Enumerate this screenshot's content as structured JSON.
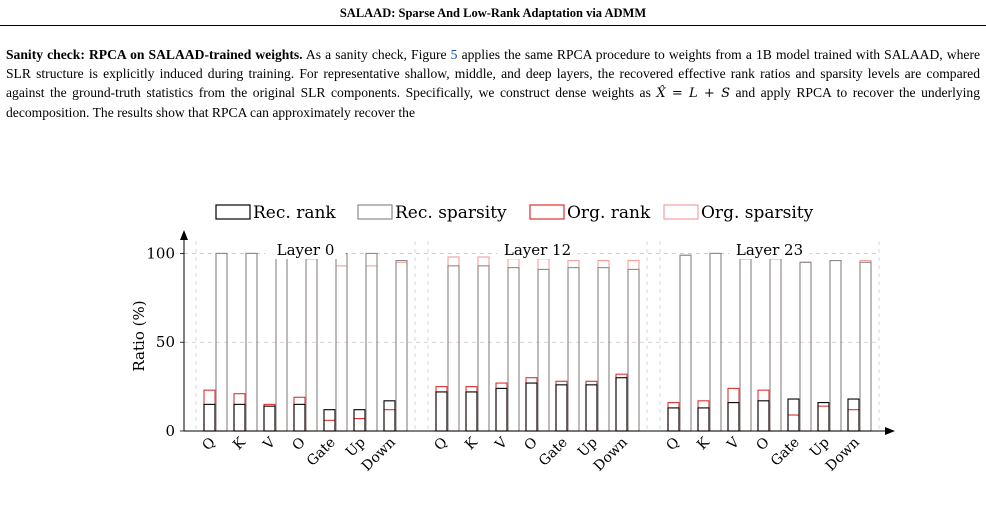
{
  "header": {
    "title": "SALAAD: Sparse And Low-Rank Adaptation via ADMM"
  },
  "paragraph": {
    "heading": "Sanity check: RPCA on SALAAD-trained weights.",
    "text_1": " As a sanity check, Figure ",
    "figure_ref": "5",
    "text_2": " applies the same RPCA procedure to weights from a 1B model trained with SALAAD, where SLR structure is explicitly induced during training. For representative shallow, middle, and deep layers, the recovered effective rank ratios and sparsity levels are compared against the ground-truth statistics from the original SLR components. Specifically, we construct dense weights as ",
    "equation": "X̂ = L + S",
    "text_3": " and apply RPCA to recover the underlying decomposition. The results show that RPCA can approximately recover the"
  },
  "chart_data": {
    "type": "bar",
    "ylabel": "Ratio (%)",
    "yticks": [
      0,
      50,
      100
    ],
    "ylim": [
      0,
      107
    ],
    "legend_position": "top",
    "legend": [
      "Rec. rank",
      "Rec. sparsity",
      "Org. rank",
      "Org. sparsity"
    ],
    "colors": {
      "rec_rank": "#000000",
      "rec_sparsity": "#8a8a8a",
      "org_rank": "#e03030",
      "org_sparsity": "#f2a0a0"
    },
    "groups": [
      {
        "label": "Layer 0",
        "categories": [
          "Q",
          "K",
          "V",
          "O",
          "Gate",
          "Up",
          "Down"
        ],
        "rec_rank": [
          15,
          15,
          14,
          15,
          12,
          12,
          17
        ],
        "org_rank": [
          23,
          21,
          15,
          19,
          6,
          7,
          12
        ],
        "rec_sparsity": [
          100,
          100,
          100,
          97,
          100,
          100,
          96
        ],
        "org_sparsity": [
          100,
          100,
          99,
          98,
          93,
          93,
          95
        ]
      },
      {
        "label": "Layer 12",
        "categories": [
          "Q",
          "K",
          "V",
          "O",
          "Gate",
          "Up",
          "Down"
        ],
        "rec_rank": [
          22,
          22,
          24,
          27,
          26,
          26,
          30
        ],
        "org_rank": [
          25,
          25,
          27,
          30,
          28,
          28,
          32
        ],
        "rec_sparsity": [
          93,
          93,
          92,
          91,
          92,
          92,
          91
        ],
        "org_sparsity": [
          98,
          98,
          97,
          97,
          96,
          96,
          96
        ]
      },
      {
        "label": "Layer 23",
        "categories": [
          "Q",
          "K",
          "V",
          "O",
          "Gate",
          "Up",
          "Down"
        ],
        "rec_rank": [
          13,
          13,
          16,
          17,
          18,
          16,
          18
        ],
        "org_rank": [
          16,
          17,
          24,
          23,
          9,
          14,
          12
        ],
        "rec_sparsity": [
          99,
          100,
          97,
          97,
          95,
          96,
          95
        ],
        "org_sparsity": [
          99,
          100,
          99,
          99,
          95,
          96,
          96
        ]
      }
    ]
  }
}
